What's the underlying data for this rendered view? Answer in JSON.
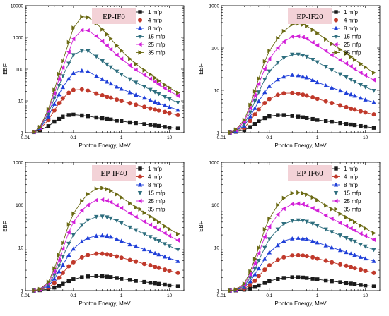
{
  "colors": {
    "1 mfp": "#1a1a1a",
    "4 mfp": "#c0392b",
    "8 mfp": "#1f3fd8",
    "15 mfp": "#2e6e7e",
    "25 mfp": "#d21fd8",
    "35 mfp": "#6b6a14",
    "title_box": "#f3d2d7"
  },
  "markers": {
    "1 mfp": "square",
    "4 mfp": "circle",
    "8 mfp": "triangle-up",
    "15 mfp": "triangle-down",
    "25 mfp": "triangle-left",
    "35 mfp": "triangle-right"
  },
  "chart_data": [
    {
      "type": "line",
      "title": "EP-IF0",
      "xlabel": "Photon Energy, MeV",
      "ylabel": "EBF",
      "xscale": "log",
      "yscale": "log",
      "xlim": [
        0.01,
        20
      ],
      "ylim": [
        1,
        10000
      ],
      "xticks": [
        0.01,
        0.1,
        1,
        10
      ],
      "xtick_labels": [
        "0.01",
        "0.1",
        "1",
        "10"
      ],
      "yticks": [
        1,
        10,
        100,
        1000,
        10000
      ],
      "ytick_labels": [
        "1",
        "10",
        "100",
        "1000",
        "10000"
      ],
      "legend_position": "top-right",
      "x": [
        0.015,
        0.02,
        0.03,
        0.04,
        0.05,
        0.06,
        0.08,
        0.1,
        0.15,
        0.2,
        0.3,
        0.4,
        0.5,
        0.6,
        0.8,
        1,
        1.5,
        2,
        3,
        4,
        5,
        6,
        8,
        10,
        15
      ],
      "series": [
        {
          "name": "1 mfp",
          "values": [
            1.05,
            1.2,
            1.6,
            2.2,
            2.7,
            3.2,
            3.6,
            3.7,
            3.5,
            3.3,
            3.0,
            2.85,
            2.7,
            2.6,
            2.4,
            2.3,
            2.1,
            2.0,
            1.85,
            1.75,
            1.68,
            1.62,
            1.52,
            1.45,
            1.35
          ]
        },
        {
          "name": "4 mfp",
          "values": [
            1.05,
            1.3,
            2.5,
            5.0,
            8.5,
            12,
            18,
            22,
            23,
            21,
            17,
            15,
            13.5,
            12.5,
            11,
            10,
            8.5,
            7.6,
            6.5,
            5.8,
            5.3,
            5.0,
            4.5,
            4.1,
            3.6
          ]
        },
        {
          "name": "8 mfp",
          "values": [
            1.05,
            1.35,
            3.2,
            8.0,
            16,
            27,
            50,
            75,
            90,
            85,
            60,
            48,
            40,
            35,
            28,
            24,
            18.5,
            15.5,
            12.5,
            10.5,
            9.3,
            8.4,
            7.2,
            6.4,
            5.2
          ]
        },
        {
          "name": "15 mfp",
          "values": [
            1.05,
            1.4,
            4.0,
            12,
            30,
            60,
            150,
            280,
            380,
            370,
            250,
            180,
            140,
            115,
            85,
            68,
            48,
            38,
            28,
            22.5,
            19,
            16.5,
            13.5,
            11.5,
            8.8
          ]
        },
        {
          "name": "25 mfp",
          "values": [
            1.05,
            1.45,
            4.8,
            17,
            48,
            110,
            350,
            900,
            1700,
            1650,
            1100,
            750,
            550,
            420,
            280,
            210,
            130,
            95,
            65,
            50,
            40,
            33,
            25,
            20.5,
            14.5
          ]
        },
        {
          "name": "35 mfp",
          "values": [
            1.05,
            1.5,
            5.5,
            22,
            70,
            180,
            700,
            2000,
            4500,
            4300,
            2800,
            1800,
            1250,
            900,
            550,
            380,
            210,
            145,
            92,
            68,
            53,
            43,
            32,
            26,
            18
          ]
        }
      ]
    },
    {
      "type": "line",
      "title": "EP-IF20",
      "xlabel": "Photon Energy, MeV",
      "ylabel": "EBF",
      "xscale": "log",
      "yscale": "log",
      "xlim": [
        0.01,
        20
      ],
      "ylim": [
        1,
        1000
      ],
      "xticks": [
        0.01,
        0.1,
        1,
        10
      ],
      "xtick_labels": [
        "0.01",
        "0.1",
        "1",
        "10"
      ],
      "yticks": [
        1,
        10,
        100,
        1000
      ],
      "ytick_labels": [
        "1",
        "10",
        "100",
        "1000"
      ],
      "legend_position": "top-right",
      "x": [
        0.015,
        0.02,
        0.03,
        0.04,
        0.05,
        0.06,
        0.08,
        0.1,
        0.15,
        0.2,
        0.3,
        0.4,
        0.5,
        0.6,
        0.8,
        1,
        1.5,
        2,
        3,
        4,
        5,
        6,
        8,
        10,
        15
      ],
      "series": [
        {
          "name": "1 mfp",
          "values": [
            1.0,
            1.05,
            1.15,
            1.35,
            1.6,
            1.85,
            2.2,
            2.45,
            2.6,
            2.6,
            2.5,
            2.4,
            2.3,
            2.22,
            2.1,
            2.0,
            1.88,
            1.8,
            1.68,
            1.6,
            1.55,
            1.5,
            1.43,
            1.38,
            1.3
          ]
        },
        {
          "name": "4 mfp",
          "values": [
            1.0,
            1.08,
            1.3,
            1.9,
            2.7,
            3.5,
            5.0,
            6.2,
            7.8,
            8.5,
            8.6,
            8.3,
            7.9,
            7.5,
            6.8,
            6.3,
            5.5,
            5.0,
            4.4,
            4.0,
            3.7,
            3.5,
            3.2,
            3.0,
            2.7
          ]
        },
        {
          "name": "8 mfp",
          "values": [
            1.0,
            1.1,
            1.45,
            2.4,
            3.8,
            5.5,
            9.0,
            12.5,
            18,
            21,
            23,
            22.5,
            21,
            20,
            17.5,
            15.5,
            13,
            11.5,
            9.8,
            8.7,
            8.0,
            7.4,
            6.6,
            6.0,
            5.2
          ]
        },
        {
          "name": "15 mfp",
          "values": [
            1.0,
            1.12,
            1.6,
            3.0,
            5.5,
            9.0,
            18,
            28,
            45,
            58,
            70,
            70,
            66,
            62,
            53,
            46,
            36,
            30,
            24,
            20.5,
            18,
            16,
            13.5,
            12,
            9.8
          ]
        },
        {
          "name": "25 mfp",
          "values": [
            1.0,
            1.15,
            1.8,
            3.8,
            7.5,
            14,
            32,
            55,
            100,
            140,
            185,
            190,
            180,
            165,
            135,
            115,
            85,
            68,
            52,
            43,
            37,
            32,
            26,
            22.5,
            17.5
          ]
        },
        {
          "name": "35 mfp",
          "values": [
            1.0,
            1.18,
            2.0,
            4.5,
            9.5,
            19,
            48,
            85,
            170,
            250,
            360,
            380,
            360,
            330,
            270,
            225,
            160,
            125,
            92,
            74,
            62,
            53,
            42,
            35,
            26
          ]
        }
      ]
    },
    {
      "type": "line",
      "title": "EP-IF40",
      "xlabel": "Photon Energy, MeV",
      "ylabel": "EBF",
      "xscale": "log",
      "yscale": "log",
      "xlim": [
        0.01,
        20
      ],
      "ylim": [
        1,
        1000
      ],
      "xticks": [
        0.01,
        0.1,
        1,
        10
      ],
      "xtick_labels": [
        "0.01",
        "0.1",
        "1",
        "10"
      ],
      "yticks": [
        1,
        10,
        100,
        1000
      ],
      "ytick_labels": [
        "1",
        "10",
        "100",
        "1000"
      ],
      "legend_position": "top-right",
      "x": [
        0.015,
        0.02,
        0.03,
        0.04,
        0.05,
        0.06,
        0.08,
        0.1,
        0.15,
        0.2,
        0.3,
        0.4,
        0.5,
        0.6,
        0.8,
        1,
        1.5,
        2,
        3,
        4,
        5,
        6,
        8,
        10,
        15
      ],
      "series": [
        {
          "name": "1 mfp",
          "values": [
            1.0,
            1.02,
            1.08,
            1.18,
            1.3,
            1.45,
            1.68,
            1.85,
            2.05,
            2.15,
            2.2,
            2.18,
            2.12,
            2.07,
            1.98,
            1.9,
            1.78,
            1.7,
            1.6,
            1.53,
            1.48,
            1.44,
            1.38,
            1.33,
            1.25
          ]
        },
        {
          "name": "4 mfp",
          "values": [
            1.0,
            1.04,
            1.18,
            1.5,
            2.0,
            2.6,
            3.7,
            4.6,
            6.0,
            6.8,
            7.3,
            7.3,
            7.1,
            6.8,
            6.3,
            5.9,
            5.2,
            4.8,
            4.2,
            3.9,
            3.6,
            3.4,
            3.1,
            2.9,
            2.6
          ]
        },
        {
          "name": "8 mfp",
          "values": [
            1.0,
            1.05,
            1.28,
            1.9,
            2.8,
            4.0,
            6.8,
            9.5,
            14,
            17,
            19,
            19.5,
            19,
            18,
            16,
            14.5,
            12,
            10.8,
            9.2,
            8.2,
            7.5,
            7.0,
            6.2,
            5.7,
            4.9
          ]
        },
        {
          "name": "15 mfp",
          "values": [
            1.0,
            1.06,
            1.38,
            2.3,
            3.8,
            6.2,
            12.5,
            20,
            34,
            44,
            53,
            54,
            52,
            49,
            43,
            38,
            30,
            26,
            21,
            18,
            16,
            14.5,
            12.3,
            11,
            9.0
          ]
        },
        {
          "name": "25 mfp",
          "values": [
            1.0,
            1.07,
            1.48,
            2.8,
            5.2,
            9.5,
            23,
            40,
            75,
            100,
            130,
            133,
            126,
            117,
            98,
            85,
            64,
            53,
            41,
            34.5,
            30,
            26.5,
            22,
            19,
            15
          ]
        },
        {
          "name": "35 mfp",
          "values": [
            1.0,
            1.08,
            1.6,
            3.3,
            6.8,
            13,
            35,
            63,
            125,
            180,
            240,
            250,
            235,
            215,
            178,
            150,
            110,
            88,
            66,
            54,
            46,
            40,
            32,
            27.5,
            21
          ]
        }
      ]
    },
    {
      "type": "line",
      "title": "EP-IF60",
      "xlabel": "Photon Energy, MeV",
      "ylabel": "EBF",
      "xscale": "log",
      "yscale": "log",
      "xlim": [
        0.01,
        20
      ],
      "ylim": [
        1,
        1000
      ],
      "xticks": [
        0.01,
        0.1,
        1,
        10
      ],
      "xtick_labels": [
        "0.01",
        "0.1",
        "1",
        "10"
      ],
      "yticks": [
        1,
        10,
        100,
        1000
      ],
      "ytick_labels": [
        "1",
        "10",
        "100",
        "1000"
      ],
      "legend_position": "top-right",
      "x": [
        0.015,
        0.02,
        0.03,
        0.04,
        0.05,
        0.06,
        0.08,
        0.1,
        0.15,
        0.2,
        0.3,
        0.4,
        0.5,
        0.6,
        0.8,
        1,
        1.5,
        2,
        3,
        4,
        5,
        6,
        8,
        10,
        15
      ],
      "series": [
        {
          "name": "1 mfp",
          "values": [
            1.0,
            1.01,
            1.05,
            1.12,
            1.22,
            1.33,
            1.52,
            1.68,
            1.88,
            1.98,
            2.05,
            2.05,
            2.02,
            1.98,
            1.9,
            1.84,
            1.73,
            1.66,
            1.57,
            1.5,
            1.46,
            1.42,
            1.36,
            1.32,
            1.25
          ]
        },
        {
          "name": "4 mfp",
          "values": [
            1.0,
            1.02,
            1.12,
            1.35,
            1.7,
            2.2,
            3.1,
            3.9,
            5.2,
            6.0,
            6.6,
            6.7,
            6.6,
            6.4,
            6.0,
            5.6,
            5.0,
            4.6,
            4.1,
            3.8,
            3.55,
            3.35,
            3.1,
            2.9,
            2.6
          ]
        },
        {
          "name": "8 mfp",
          "values": [
            1.0,
            1.03,
            1.2,
            1.65,
            2.4,
            3.3,
            5.5,
            7.8,
            11.5,
            14.5,
            16.5,
            17,
            16.5,
            16,
            14.5,
            13.3,
            11.3,
            10.2,
            8.8,
            7.9,
            7.3,
            6.8,
            6.1,
            5.6,
            4.9
          ]
        },
        {
          "name": "15 mfp",
          "values": [
            1.0,
            1.04,
            1.28,
            2.0,
            3.2,
            5.0,
            10,
            16,
            27,
            36,
            43,
            44,
            43,
            41,
            36.5,
            33,
            27,
            23.5,
            19.5,
            17,
            15.2,
            14,
            12,
            10.8,
            9.0
          ]
        },
        {
          "name": "25 mfp",
          "values": [
            1.0,
            1.05,
            1.35,
            2.4,
            4.3,
            7.5,
            18,
            31,
            60,
            82,
            105,
            108,
            104,
            97,
            84,
            74,
            57,
            48,
            38,
            32.5,
            28.5,
            25.5,
            21.5,
            19,
            15.5
          ]
        },
        {
          "name": "35 mfp",
          "values": [
            1.0,
            1.06,
            1.45,
            2.8,
            5.5,
            10,
            27,
            48,
            100,
            145,
            190,
            195,
            188,
            175,
            150,
            130,
            98,
            80,
            62,
            52,
            45,
            40,
            33,
            28.5,
            22
          ]
        }
      ]
    }
  ]
}
